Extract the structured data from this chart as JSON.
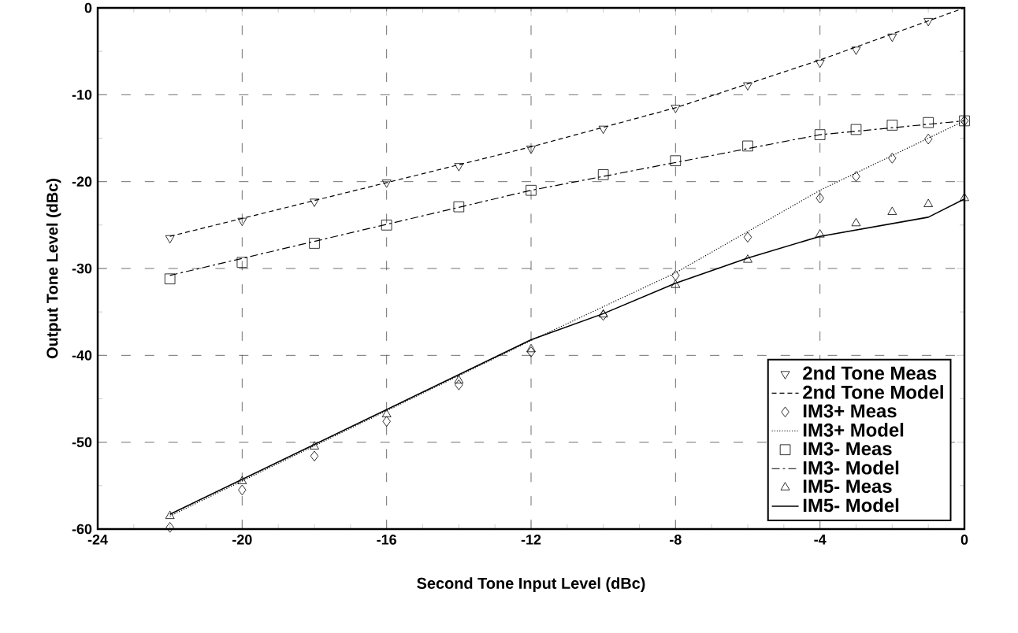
{
  "chart_data": {
    "type": "line",
    "xlabel": "Second Tone Input Level (dBc)",
    "ylabel": "Output Tone Level (dBc)",
    "xlim": [
      -24,
      0
    ],
    "xticks": [
      -24,
      -20,
      -16,
      -12,
      -8,
      -4,
      0
    ],
    "ylim": [
      -60,
      0
    ],
    "yticks": [
      -60,
      -50,
      -40,
      -30,
      -20,
      -10,
      0
    ],
    "grid": true,
    "legend": "bottom right",
    "series": [
      {
        "name": "2nd Tone Meas",
        "type": "scatter",
        "marker": "triangle-down",
        "color": "#000000",
        "x": [
          -22,
          -20,
          -18,
          -16,
          -14,
          -12,
          -10,
          -8,
          -6,
          -4,
          -3,
          -2,
          -1
        ],
        "values": [
          -26.5,
          -24.5,
          -22.3,
          -20.1,
          -18.2,
          -16.2,
          -13.9,
          -11.5,
          -8.9,
          -6.3,
          -4.8,
          -3.3,
          -1.5
        ]
      },
      {
        "name": "2nd Tone Model",
        "line_style": "dashed",
        "color": "#000000",
        "x": [
          -22,
          -12,
          -8,
          -4,
          0
        ],
        "values": [
          -26.3,
          -16,
          -11.5,
          -6,
          0
        ]
      },
      {
        "name": "IM3+ Meas",
        "type": "scatter",
        "marker": "diamond",
        "color": "#000000",
        "x": [
          -22,
          -20,
          -18,
          -16,
          -14,
          -12,
          -10,
          -8,
          -6,
          -4,
          -3,
          -2,
          -1,
          0
        ],
        "values": [
          -59.8,
          -55.5,
          -51.6,
          -47.6,
          -43.4,
          -39.6,
          -35.4,
          -30.8,
          -26.4,
          -21.9,
          -19.4,
          -17.3,
          -15.1,
          -13
        ]
      },
      {
        "name": "IM3+  Model",
        "line_style": "dotted",
        "color": "#000000",
        "x": [
          -22,
          -12,
          -8,
          -4,
          0
        ],
        "values": [
          -58.5,
          -38.3,
          -30.5,
          -21,
          -13
        ]
      },
      {
        "name": "IM3- Meas",
        "type": "scatter",
        "marker": "square",
        "color": "#000000",
        "x": [
          -22,
          -20,
          -18,
          -16,
          -14,
          -12,
          -10,
          -8,
          -6,
          -4,
          -3,
          -2,
          -1,
          0
        ],
        "values": [
          -31.2,
          -29.3,
          -27.1,
          -25,
          -22.9,
          -21,
          -19.2,
          -17.6,
          -15.9,
          -14.6,
          -14,
          -13.5,
          -13.2,
          -13
        ]
      },
      {
        "name": "IM3-  Model",
        "line_style": "dashdot",
        "color": "#000000",
        "x": [
          -22,
          -12,
          -4,
          0
        ],
        "values": [
          -30.8,
          -21,
          -14.6,
          -13
        ]
      },
      {
        "name": "IM5- Meas",
        "type": "scatter",
        "marker": "triangle",
        "color": "#000000",
        "x": [
          -22,
          -20,
          -18,
          -16,
          -14,
          -12,
          -10,
          -8,
          -6,
          -4,
          -3,
          -2,
          -1,
          0
        ],
        "values": [
          -58.5,
          -54.5,
          -50.5,
          -46.8,
          -42.9,
          -39.3,
          -35.3,
          -31.9,
          -29,
          -26.1,
          -24.8,
          -23.5,
          -22.6,
          -21.9
        ]
      },
      {
        "name": "IM5- Model",
        "line_style": "solid",
        "color": "#000000",
        "x": [
          -22,
          -12,
          -10,
          -8,
          -6,
          -4,
          -1,
          0
        ],
        "values": [
          -58.3,
          -38.2,
          -35.2,
          -31.7,
          -28.8,
          -26.3,
          -24.1,
          -22
        ]
      }
    ]
  }
}
